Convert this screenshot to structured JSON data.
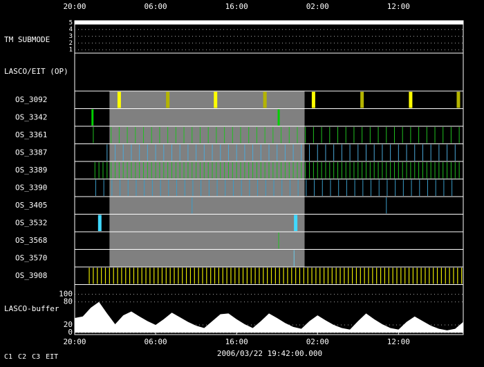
{
  "chart_data": {
    "type": "timeline",
    "xlim": [
      0,
      48
    ],
    "xticks": [
      {
        "value": 0,
        "label": "20:00"
      },
      {
        "value": 10,
        "label": "06:00"
      },
      {
        "value": 20,
        "label": "16:00"
      },
      {
        "value": 30,
        "label": "02:00"
      },
      {
        "value": 40,
        "label": "12:00"
      }
    ],
    "date": "2006/03/22 19:42:00.000",
    "shaded": [
      4.3,
      28.4
    ],
    "tm_submode": {
      "label": "TM SUBMODE",
      "ylim": [
        0.5,
        5.3
      ],
      "yticks": [
        1,
        2,
        3,
        4,
        5
      ],
      "x": [
        0,
        48
      ],
      "values": [
        5,
        5
      ],
      "color": "#ffffff"
    },
    "op_label": "LASCO/EIT (OP)",
    "rows": [
      {
        "name": "OS_3092",
        "times": [
          5.5,
          11.5,
          17.4,
          23.5,
          29.5,
          35.5,
          41.5,
          47.4
        ],
        "colors": [
          "#ffff00",
          "#b4b400",
          "#ffff00",
          "#b4b400",
          "#ffff00",
          "#b4b400",
          "#ffff00",
          "#b4b400"
        ]
      },
      {
        "name": "OS_3342",
        "times": [
          2.2,
          25.2
        ],
        "color": "#00d000"
      },
      {
        "name": "OS_3361",
        "times": [
          2.3,
          4.5,
          5.5,
          6.5,
          7.5,
          8.5,
          9.5,
          10.5,
          11.5,
          12.5,
          13.5,
          14.5,
          15.5,
          16.5,
          17.5,
          18.5,
          19.5,
          20.5,
          21.5,
          22.5,
          23.5,
          24.5,
          25.5,
          26.5,
          27.5,
          28.5,
          29.5,
          30.5,
          31.5,
          32.5,
          33.5,
          34.5,
          35.5,
          36.5,
          37.5,
          38.5,
          39.5,
          40.5,
          41.5,
          42.5,
          43.5,
          44.5,
          45.5,
          46.5,
          47.5
        ],
        "color": "#20c020"
      },
      {
        "name": "OS_3387",
        "times": [
          4,
          5,
          6,
          7,
          8,
          9,
          10,
          11,
          12,
          13,
          14,
          15,
          16,
          17,
          18,
          19,
          20,
          21,
          22,
          23,
          24,
          25,
          26,
          27,
          28,
          29,
          30,
          31,
          32,
          33,
          34,
          35,
          36,
          37,
          38,
          39,
          40,
          41,
          42,
          43,
          44,
          45,
          46,
          47
        ],
        "color": "#4aa8d8"
      },
      {
        "name": "OS_3389",
        "times": [
          2.5,
          3,
          3.5,
          4,
          4.5,
          5,
          5.5,
          6,
          6.5,
          7,
          7.5,
          8,
          8.5,
          9,
          9.5,
          10,
          10.5,
          11,
          11.5,
          12,
          12.5,
          13,
          13.5,
          14,
          14.5,
          15,
          15.5,
          16,
          16.5,
          17,
          17.5,
          18,
          18.5,
          19,
          19.5,
          20,
          20.5,
          21,
          21.5,
          22,
          22.5,
          23,
          23.5,
          24,
          24.5,
          25,
          25.5,
          26,
          26.5,
          27,
          27.5,
          28,
          28.5,
          29,
          29.5,
          30,
          30.5,
          31,
          31.5,
          32,
          32.5,
          33,
          33.5,
          34,
          34.5,
          35,
          35.5,
          36,
          36.5,
          37,
          37.5,
          38,
          38.5,
          39,
          39.5,
          40,
          40.5,
          41,
          41.5,
          42,
          42.5,
          43,
          43.5,
          44,
          44.5,
          45,
          45.5,
          46,
          46.5,
          47,
          47.5
        ],
        "color": "#20c020"
      },
      {
        "name": "OS_3390",
        "times": [
          2.6,
          3.6,
          4.6,
          5.6,
          6.6,
          7.6,
          8.6,
          9.6,
          10.6,
          11.6,
          12.6,
          13.6,
          14.6,
          15.6,
          16.6,
          17.6,
          18.6,
          19.6,
          20.6,
          21.6,
          22.6,
          23.6,
          24.6,
          25.6,
          26.6,
          27.6,
          28.6,
          29.6,
          30.6,
          31.6,
          32.6,
          33.6,
          34.6,
          35.6,
          36.6,
          37.6,
          38.6,
          39.6,
          40.6,
          41.6,
          42.6,
          43.6,
          44.6,
          45.6,
          46.6
        ],
        "color": "#3a9cc8"
      },
      {
        "name": "OS_3405",
        "times": [
          14.5,
          38.5
        ],
        "color": "#3a9cc8"
      },
      {
        "name": "OS_3532",
        "times": [
          3.1,
          27.3
        ],
        "color": "#40d8ff"
      },
      {
        "name": "OS_3568",
        "times": [
          25.2
        ],
        "color": "#20c020"
      },
      {
        "name": "OS_3570",
        "times": [
          27.1
        ],
        "color": "#6ac8e8"
      },
      {
        "name": "OS_3908",
        "times": [
          1.8,
          2.3,
          2.8,
          3.3,
          3.8,
          4.3,
          4.8,
          5.3,
          5.8,
          6.3,
          6.8,
          7.3,
          7.8,
          8.3,
          8.8,
          9.3,
          9.8,
          10.3,
          10.8,
          11.3,
          11.8,
          12.3,
          12.8,
          13.3,
          13.8,
          14.3,
          14.8,
          15.3,
          15.8,
          16.3,
          16.8,
          17.3,
          17.8,
          18.3,
          18.8,
          19.3,
          19.8,
          20.3,
          20.8,
          21.3,
          21.8,
          22.3,
          22.8,
          23.3,
          23.8,
          24.3,
          24.8,
          25.3,
          25.8,
          26.3,
          26.8,
          27.3,
          27.8,
          28.3,
          28.8,
          29.3,
          29.8,
          30.3,
          30.8,
          31.3,
          31.8,
          32.3,
          32.8,
          33.3,
          33.8,
          34.3,
          34.8,
          35.3,
          35.8,
          36.3,
          36.8,
          37.3,
          37.8,
          38.3,
          38.8,
          39.3,
          39.8,
          40.3,
          40.8,
          41.3,
          41.8,
          42.3,
          42.8,
          43.3,
          43.8,
          44.3,
          44.8,
          45.3,
          45.8,
          46.3,
          46.8,
          47.3,
          47.8
        ],
        "color": "#e8e800"
      }
    ],
    "buffer": {
      "label": "LASCO-buffer",
      "ylim": [
        -5,
        125
      ],
      "yticks": [
        0,
        20,
        80,
        100
      ],
      "color": "#ffffff",
      "x": [
        0,
        1,
        2,
        3,
        4,
        5,
        6,
        7,
        8,
        9,
        10,
        11,
        12,
        13,
        14,
        15,
        16,
        17,
        18,
        19,
        20,
        21,
        22,
        23,
        24,
        25,
        26,
        27,
        28,
        29,
        30,
        31,
        32,
        33,
        34,
        35,
        36,
        37,
        38,
        39,
        40,
        41,
        42,
        43,
        44,
        45,
        46,
        47,
        48
      ],
      "values": [
        38,
        42,
        65,
        80,
        50,
        22,
        45,
        55,
        42,
        30,
        20,
        35,
        52,
        40,
        28,
        18,
        12,
        30,
        48,
        50,
        35,
        22,
        12,
        30,
        50,
        38,
        25,
        15,
        10,
        30,
        45,
        32,
        20,
        12,
        8,
        30,
        50,
        35,
        22,
        12,
        8,
        28,
        42,
        30,
        18,
        10,
        6,
        10,
        28
      ]
    },
    "legend": [
      {
        "label": "C1",
        "color": "#ff3030"
      },
      {
        "label": "C2",
        "color": "#30ff30"
      },
      {
        "label": "C3",
        "color": "#ffffff"
      },
      {
        "label": "EIT",
        "color": "#ffffff"
      }
    ]
  }
}
